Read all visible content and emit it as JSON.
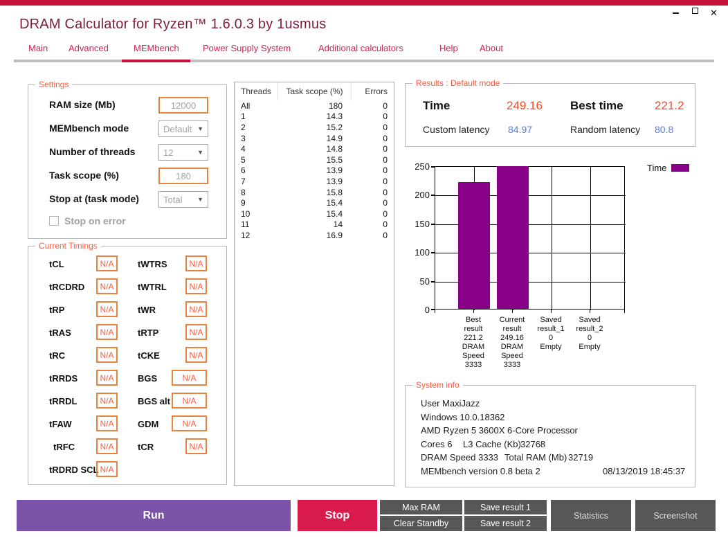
{
  "window": {
    "title": "DRAM Calculator for Ryzen™ 1.6.0.3 by 1usmus"
  },
  "nav": {
    "tabs": [
      {
        "label": "Main"
      },
      {
        "label": "Advanced"
      },
      {
        "label": "MEMbench"
      },
      {
        "label": "Power Supply System"
      },
      {
        "label": "Additional calculators"
      },
      {
        "label": "Help"
      },
      {
        "label": "About"
      }
    ],
    "active_tab": "MEMbench"
  },
  "settings": {
    "title": "Settings",
    "fields": [
      {
        "label": "RAM size (Mb)",
        "value": "12000",
        "type": "input"
      },
      {
        "label": "MEMbench mode",
        "value": "Default",
        "type": "select"
      },
      {
        "label": "Number of threads",
        "value": "12",
        "type": "select"
      },
      {
        "label": "Task scope (%)",
        "value": "180",
        "type": "input"
      },
      {
        "label": "Stop at (task mode)",
        "value": "Total",
        "type": "select"
      }
    ],
    "checkbox_label": "Stop on error",
    "checkbox_checked": false
  },
  "timings": {
    "title": "Current Timings",
    "left": [
      {
        "label": "tCL",
        "value": "N/A"
      },
      {
        "label": "tRCDRD",
        "value": "N/A"
      },
      {
        "label": "tRP",
        "value": "N/A"
      },
      {
        "label": "tRAS",
        "value": "N/A"
      },
      {
        "label": "tRC",
        "value": "N/A"
      },
      {
        "label": "tRRDS",
        "value": "N/A"
      },
      {
        "label": "tRRDL",
        "value": "N/A"
      },
      {
        "label": "tFAW",
        "value": "N/A"
      },
      {
        "label": "tRFC",
        "value": "N/A"
      },
      {
        "label": "tRDRD SCL",
        "value": "N/A"
      }
    ],
    "right": [
      {
        "label": "tWTRS",
        "value": "N/A"
      },
      {
        "label": "tWTRL",
        "value": "N/A"
      },
      {
        "label": "tWR",
        "value": "N/A"
      },
      {
        "label": "tRTP",
        "value": "N/A"
      },
      {
        "label": "tCKE",
        "value": "N/A"
      },
      {
        "label": "BGS",
        "value": "N/A"
      },
      {
        "label": "BGS alt",
        "value": "N/A"
      },
      {
        "label": "GDM",
        "value": "N/A"
      },
      {
        "label": "tCR",
        "value": "N/A"
      }
    ]
  },
  "threads_table": {
    "headers": [
      "Threads",
      "Task scope (%)",
      "Errors"
    ],
    "rows": [
      [
        "All",
        "180",
        "0"
      ],
      [
        "1",
        "14.3",
        "0"
      ],
      [
        "2",
        "15.2",
        "0"
      ],
      [
        "3",
        "14.9",
        "0"
      ],
      [
        "4",
        "14.8",
        "0"
      ],
      [
        "5",
        "15.5",
        "0"
      ],
      [
        "6",
        "13.9",
        "0"
      ],
      [
        "7",
        "13.9",
        "0"
      ],
      [
        "8",
        "15.8",
        "0"
      ],
      [
        "9",
        "15.4",
        "0"
      ],
      [
        "10",
        "15.4",
        "0"
      ],
      [
        "11",
        "14",
        "0"
      ],
      [
        "12",
        "16.9",
        "0"
      ]
    ]
  },
  "results": {
    "title": "Results : Default mode",
    "time_label": "Time",
    "time_value": "249.16",
    "best_time_label": "Best time",
    "best_time_value": "221.2",
    "custom_latency_label": "Custom latency",
    "custom_latency_value": "84.97",
    "random_latency_label": "Random latency",
    "random_latency_value": "80.8"
  },
  "chart_data": {
    "type": "bar",
    "title": "",
    "categories": [
      "Best result",
      "Current result",
      "Saved result_1",
      "Saved result_2"
    ],
    "category_labels": [
      "Best\nresult\n221.2\nDRAM\nSpeed\n3333",
      "Current\nresult\n249.16\nDRAM\nSpeed\n3333",
      "Saved\nresult_1\n0\nEmpty",
      "Saved\nresult_2\n0\nEmpty"
    ],
    "series": [
      {
        "name": "Time",
        "values": [
          221.2,
          249.16,
          0,
          0
        ],
        "color": "#870087"
      }
    ],
    "ylim": [
      0,
      250
    ],
    "yticks": [
      0,
      50,
      100,
      150,
      200,
      250
    ],
    "ytick_labels_desc": [
      "250",
      "200",
      "150",
      "100",
      "50",
      "0"
    ],
    "grid": true,
    "legend_position": "top-right",
    "legend": {
      "label": "Time"
    }
  },
  "system_info": {
    "title": "System info",
    "user": "User MaxiJazz",
    "os": "Windows 10.0.18362",
    "cpu": "AMD Ryzen 5 3600X 6-Core Processor",
    "cores": "Cores 6",
    "l3_label": "L3 Cache (Kb)",
    "l3_value": "32768",
    "dram_speed": "DRAM Speed 3333",
    "total_ram_label": "Total RAM (Mb)",
    "total_ram_value": "32719",
    "version": "MEMbench version 0.8 beta 2",
    "datetime": "08/13/2019 18:45:37"
  },
  "actions": {
    "run": "Run",
    "stop": "Stop",
    "max_ram": "Max RAM",
    "clear_standby": "Clear Standby",
    "save_result_1": "Save result 1",
    "save_result_2": "Save result 2",
    "statistics": "Statistics",
    "screenshot": "Screenshot"
  },
  "colors": {
    "accent": "#C8103C",
    "title_text": "#7E1C3A",
    "group_label": "#FF5A3C",
    "orange_border": "#E8823C",
    "value_orange": "#FF4521",
    "value_blue": "#5580E0",
    "bar_purple": "#870087",
    "run_purple": "#7A52A8",
    "stop_crimson": "#D91B4B",
    "button_gray": "#575757"
  }
}
